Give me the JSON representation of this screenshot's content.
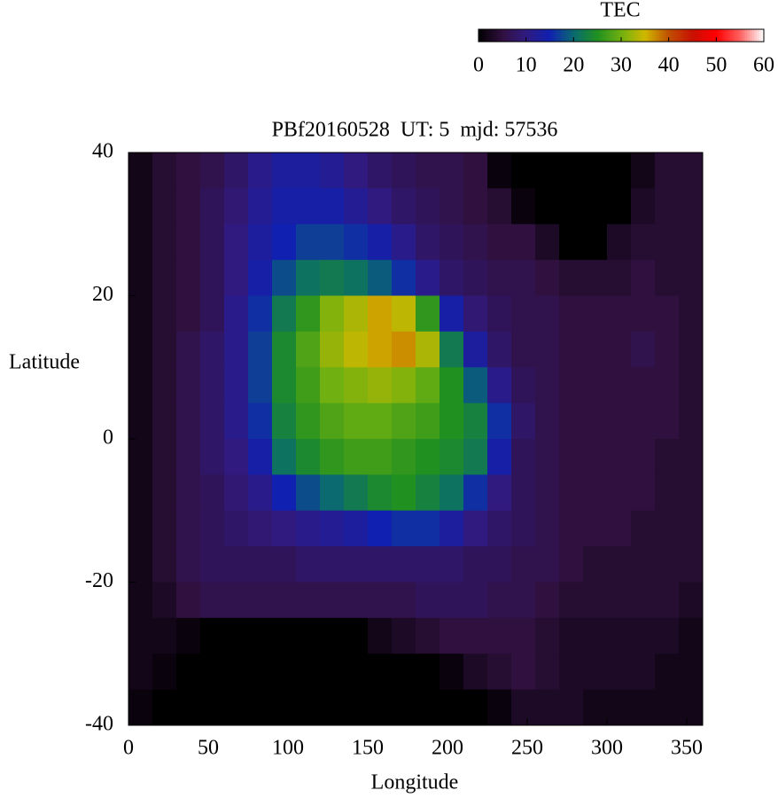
{
  "chart_data": {
    "type": "heatmap",
    "title": "PBf20160528  UT: 5  mjd: 57536",
    "xlabel": "Longitude",
    "ylabel": "Latitude",
    "xlim": [
      0,
      360
    ],
    "ylim": [
      -40,
      40
    ],
    "xticks": [
      0,
      50,
      100,
      150,
      200,
      250,
      300,
      350
    ],
    "yticks": [
      -40,
      -20,
      0,
      20,
      40
    ],
    "colorbar_label": "TEC",
    "zlim": [
      0,
      60
    ],
    "zticks": [
      0,
      10,
      20,
      30,
      40,
      50,
      60
    ],
    "colors": [
      "#000000",
      "#30103f",
      "#301a80",
      "#1020b0",
      "#0a6a70",
      "#209020",
      "#70b010",
      "#d0b800",
      "#c05000",
      "#c81000",
      "#ff0000",
      "#ff6060",
      "#ffffff"
    ],
    "z": [
      [
        2,
        4,
        5,
        6,
        8,
        11,
        13,
        13,
        12,
        10,
        8,
        7,
        6,
        6,
        5,
        1,
        0,
        0,
        0,
        0,
        0,
        2,
        4,
        4
      ],
      [
        2,
        4,
        5,
        7,
        9,
        12,
        14,
        14,
        14,
        12,
        10,
        8,
        7,
        6,
        5,
        4,
        1,
        0,
        0,
        0,
        0,
        3,
        4,
        4
      ],
      [
        2,
        4,
        5,
        7,
        10,
        13,
        15,
        17,
        17,
        16,
        14,
        11,
        8,
        7,
        6,
        5,
        5,
        3,
        0,
        0,
        3,
        4,
        4,
        4
      ],
      [
        2,
        4,
        5,
        7,
        10,
        14,
        18,
        21,
        22,
        21,
        19,
        16,
        11,
        8,
        7,
        6,
        6,
        5,
        4,
        4,
        4,
        5,
        4,
        4
      ],
      [
        2,
        4,
        5,
        7,
        11,
        16,
        22,
        26,
        31,
        33,
        36,
        34,
        26,
        14,
        9,
        7,
        6,
        6,
        5,
        5,
        5,
        5,
        5,
        4
      ],
      [
        2,
        4,
        6,
        8,
        11,
        17,
        24,
        28,
        32,
        34,
        36,
        37,
        33,
        22,
        13,
        8,
        6,
        6,
        5,
        5,
        5,
        6,
        5,
        4
      ],
      [
        2,
        4,
        6,
        8,
        11,
        17,
        24,
        27,
        30,
        31,
        32,
        31,
        29,
        25,
        19,
        11,
        7,
        6,
        5,
        5,
        5,
        5,
        5,
        4
      ],
      [
        2,
        4,
        6,
        8,
        11,
        16,
        23,
        26,
        28,
        29,
        29,
        28,
        27,
        25,
        23,
        16,
        8,
        6,
        5,
        5,
        5,
        5,
        5,
        4
      ],
      [
        2,
        4,
        6,
        8,
        10,
        14,
        21,
        24,
        26,
        27,
        27,
        26,
        25,
        24,
        22,
        14,
        7,
        6,
        5,
        5,
        5,
        5,
        4,
        4
      ],
      [
        2,
        4,
        6,
        7,
        9,
        11,
        15,
        18,
        20,
        22,
        24,
        25,
        23,
        21,
        16,
        10,
        7,
        6,
        5,
        5,
        5,
        5,
        4,
        4
      ],
      [
        2,
        4,
        6,
        7,
        8,
        9,
        10,
        11,
        12,
        13,
        15,
        16,
        16,
        13,
        10,
        8,
        7,
        6,
        5,
        5,
        5,
        4,
        4,
        4
      ],
      [
        2,
        4,
        6,
        7,
        7,
        7,
        7,
        8,
        8,
        8,
        8,
        8,
        8,
        8,
        7,
        7,
        6,
        6,
        5,
        4,
        4,
        4,
        4,
        4
      ],
      [
        2,
        3,
        5,
        6,
        6,
        6,
        6,
        6,
        6,
        6,
        6,
        6,
        7,
        7,
        7,
        6,
        6,
        5,
        4,
        4,
        4,
        4,
        4,
        3
      ],
      [
        2,
        2,
        1,
        0,
        0,
        0,
        0,
        0,
        0,
        0,
        2,
        3,
        4,
        5,
        5,
        5,
        5,
        4,
        3,
        3,
        3,
        3,
        3,
        2
      ],
      [
        2,
        1,
        0,
        0,
        0,
        0,
        0,
        0,
        0,
        0,
        0,
        0,
        0,
        1,
        3,
        4,
        5,
        4,
        3,
        3,
        3,
        3,
        2,
        2
      ],
      [
        1,
        0,
        0,
        0,
        0,
        0,
        0,
        0,
        0,
        0,
        0,
        0,
        0,
        0,
        0,
        1,
        3,
        3,
        3,
        2,
        2,
        2,
        2,
        2
      ]
    ]
  }
}
